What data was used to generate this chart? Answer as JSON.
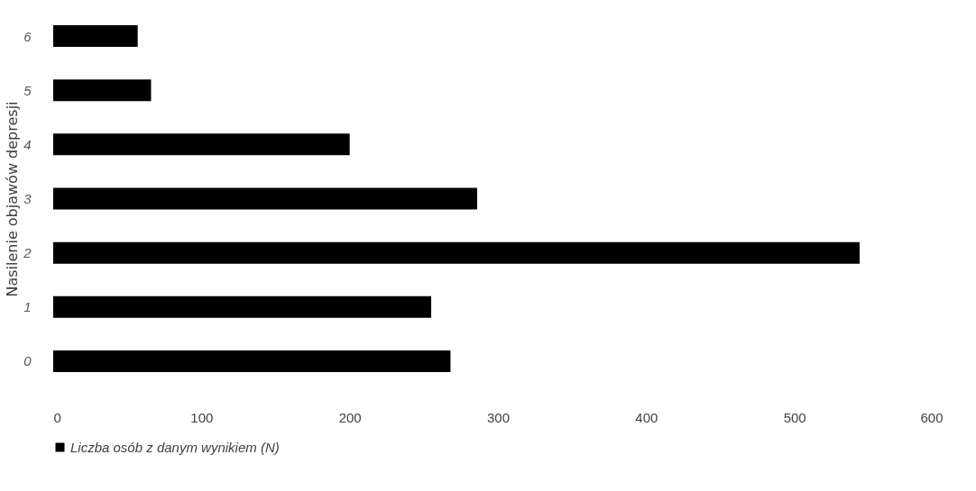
{
  "chart_data": {
    "type": "bar",
    "orientation": "horizontal",
    "ylabel": "Nasilenie objawów depresji",
    "categories": [
      "6",
      "5",
      "4",
      "3",
      "2",
      "1",
      "0"
    ],
    "series": [
      {
        "name": "Liczba osób z danym wynikiem (N)",
        "color": "#000000",
        "values": [
          57,
          66,
          200,
          286,
          544,
          255,
          268
        ]
      }
    ],
    "xlim": [
      0,
      600
    ],
    "xticks": [
      0,
      100,
      200,
      300,
      400,
      500,
      600
    ],
    "grid": false,
    "legend": "bottom"
  }
}
